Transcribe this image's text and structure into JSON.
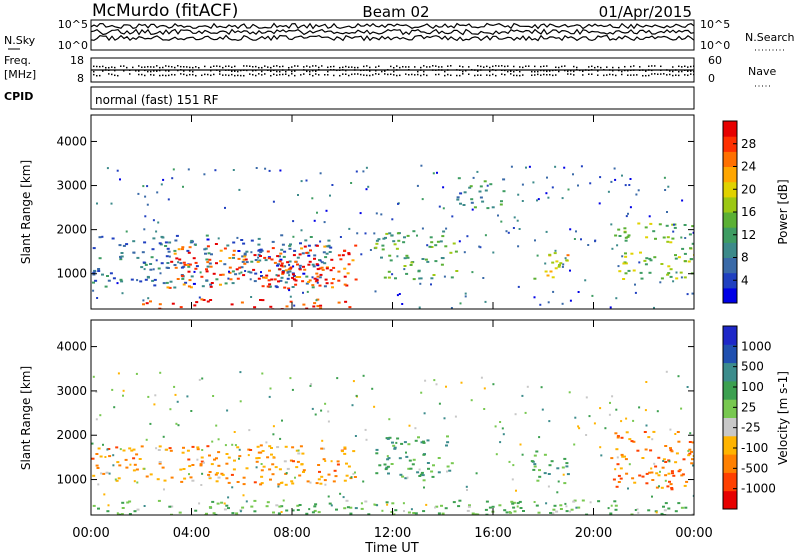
{
  "header": {
    "station": "McMurdo (fitACF)",
    "beam": "Beam 02",
    "date": "01/Apr/2015"
  },
  "strip_labels": {
    "nsky": "N.Sky",
    "nsky_ticks": [
      "10^5",
      "10^0"
    ],
    "nsearch": "N.Search",
    "nsearch_ticks": [
      "10^5",
      "10^0"
    ],
    "freq": "Freq.",
    "freq_unit": "[MHz]",
    "freq_ticks": [
      "18",
      "8"
    ],
    "nave": "Nave",
    "nave_ticks": [
      "60",
      "0"
    ],
    "cpid": "CPID",
    "cpid_text": "normal (fast) 151 RF"
  },
  "colors": {
    "power_scale": [
      "#0000e6",
      "#2040c0",
      "#3a6aa8",
      "#3c8a8a",
      "#3e9c62",
      "#5bb034",
      "#9cc814",
      "#e0d200",
      "#ffa600",
      "#ff7000",
      "#ff3000",
      "#e60000"
    ],
    "velocity_scale": [
      "#e60000",
      "#ff4000",
      "#ff8000",
      "#ffb400",
      "#c8c8c8",
      "#78c850",
      "#3ca050",
      "#3c8c8c",
      "#2050b0",
      "#1e28c8"
    ]
  },
  "chart_data": [
    {
      "type": "heatmap",
      "panel": "power",
      "ylabel": "Slant Range [km]",
      "xlabel": "Time UT",
      "x_ticks": [
        "00:00",
        "04:00",
        "08:00",
        "12:00",
        "16:00",
        "20:00",
        "00:00"
      ],
      "y_ticks": [
        1000,
        2000,
        3000,
        4000
      ],
      "ylim": [
        200,
        4600
      ],
      "colorbar_label": "Power [dB]",
      "colorbar_ticks": [
        4,
        8,
        12,
        16,
        20,
        24,
        28
      ],
      "features": [
        {
          "t0": 0.0,
          "t1": 9.5,
          "r0": 700,
          "r1": 1900,
          "level": 0.2
        },
        {
          "t0": 3.0,
          "t1": 10.7,
          "r0": 700,
          "r1": 1700,
          "level": 0.9
        },
        {
          "t0": 6.8,
          "t1": 9.5,
          "r0": 650,
          "r1": 1200,
          "level": 1.0
        },
        {
          "t0": 2.0,
          "t1": 10.5,
          "r0": 200,
          "r1": 450,
          "level": 0.95
        },
        {
          "t0": 11.2,
          "t1": 14.5,
          "r0": 900,
          "r1": 2000,
          "level": 0.4
        },
        {
          "t0": 17.6,
          "t1": 19.2,
          "r0": 900,
          "r1": 1500,
          "level": 0.6
        },
        {
          "t0": 20.8,
          "t1": 24.0,
          "r0": 900,
          "r1": 2200,
          "level": 0.5
        },
        {
          "t0": 14.5,
          "t1": 16.5,
          "r0": 2500,
          "r1": 3200,
          "level": 0.3
        }
      ]
    },
    {
      "type": "heatmap",
      "panel": "velocity",
      "ylabel": "Slant Range [km]",
      "xlabel": "Time UT",
      "x_ticks": [
        "00:00",
        "04:00",
        "08:00",
        "12:00",
        "16:00",
        "20:00",
        "00:00"
      ],
      "y_ticks": [
        1000,
        2000,
        3000,
        4000
      ],
      "ylim": [
        200,
        4600
      ],
      "colorbar_label": "Velocity [m s-1]",
      "colorbar_ticks": [
        1000,
        500,
        100,
        25,
        -25,
        -100,
        -500,
        -1000
      ],
      "features": [
        {
          "t0": 0.0,
          "t1": 10.5,
          "r0": 900,
          "r1": 1800,
          "level": -0.45
        },
        {
          "t0": 11.2,
          "t1": 14.5,
          "r0": 1000,
          "r1": 2000,
          "level": 0.35
        },
        {
          "t0": 17.5,
          "t1": 19.0,
          "r0": 900,
          "r1": 1700,
          "level": 0.3
        },
        {
          "t0": 20.5,
          "t1": 24.0,
          "r0": 800,
          "r1": 2100,
          "level": -0.6
        },
        {
          "t0": 0.0,
          "t1": 24.0,
          "r0": 200,
          "r1": 550,
          "level": 0.2
        }
      ]
    }
  ]
}
